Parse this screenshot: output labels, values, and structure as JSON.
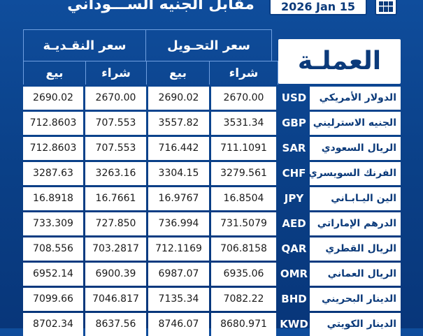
{
  "header": {
    "title": "مقابل الجنيه الســـوداني",
    "date": "2026 Jan 15"
  },
  "table": {
    "currency_header": "العملـة",
    "groups": {
      "cash": "سعر النقـديـة",
      "transfer": "سعر التحـويل"
    },
    "subheaders": {
      "cash_sell": "بيع",
      "cash_buy": "شراء",
      "transfer_sell": "بيع",
      "transfer_buy": "شراء"
    },
    "rows": [
      {
        "name": "الدولار الأمريكي",
        "code": "USD",
        "cash_sell": "2690.02",
        "cash_buy": "2670.00",
        "transfer_sell": "2690.02",
        "transfer_buy": "2670.00"
      },
      {
        "name": "الجنيه الاسترليني",
        "code": "GBP",
        "cash_sell": "712.8603",
        "cash_buy": "707.553",
        "transfer_sell": "3557.82",
        "transfer_buy": "3531.34"
      },
      {
        "name": "الريال السعودي",
        "code": "SAR",
        "cash_sell": "712.8603",
        "cash_buy": "707.553",
        "transfer_sell": "716.442",
        "transfer_buy": "711.1091"
      },
      {
        "name": "الفرنك السويسري",
        "code": "CHF",
        "cash_sell": "3287.63",
        "cash_buy": "3263.16",
        "transfer_sell": "3304.15",
        "transfer_buy": "3279.561"
      },
      {
        "name": "الين اليـابـاني",
        "code": "JPY",
        "cash_sell": "16.8918",
        "cash_buy": "16.7661",
        "transfer_sell": "16.9767",
        "transfer_buy": "16.8504"
      },
      {
        "name": "الدرهم الإماراتي",
        "code": "AED",
        "cash_sell": "733.309",
        "cash_buy": "727.850",
        "transfer_sell": "736.994",
        "transfer_buy": "731.5079"
      },
      {
        "name": "الريال القطري",
        "code": "QAR",
        "cash_sell": "708.556",
        "cash_buy": "703.2817",
        "transfer_sell": "712.1169",
        "transfer_buy": "706.8158"
      },
      {
        "name": "الريال العماني",
        "code": "OMR",
        "cash_sell": "6952.14",
        "cash_buy": "6900.39",
        "transfer_sell": "6987.07",
        "transfer_buy": "6935.06"
      },
      {
        "name": "الدينار البحريني",
        "code": "BHD",
        "cash_sell": "7099.66",
        "cash_buy": "7046.817",
        "transfer_sell": "7135.34",
        "transfer_buy": "7082.22"
      },
      {
        "name": "الدينار الكويتي",
        "code": "KWD",
        "cash_sell": "8702.34",
        "cash_buy": "8637.56",
        "transfer_sell": "8746.07",
        "transfer_buy": "8680.971"
      }
    ]
  }
}
